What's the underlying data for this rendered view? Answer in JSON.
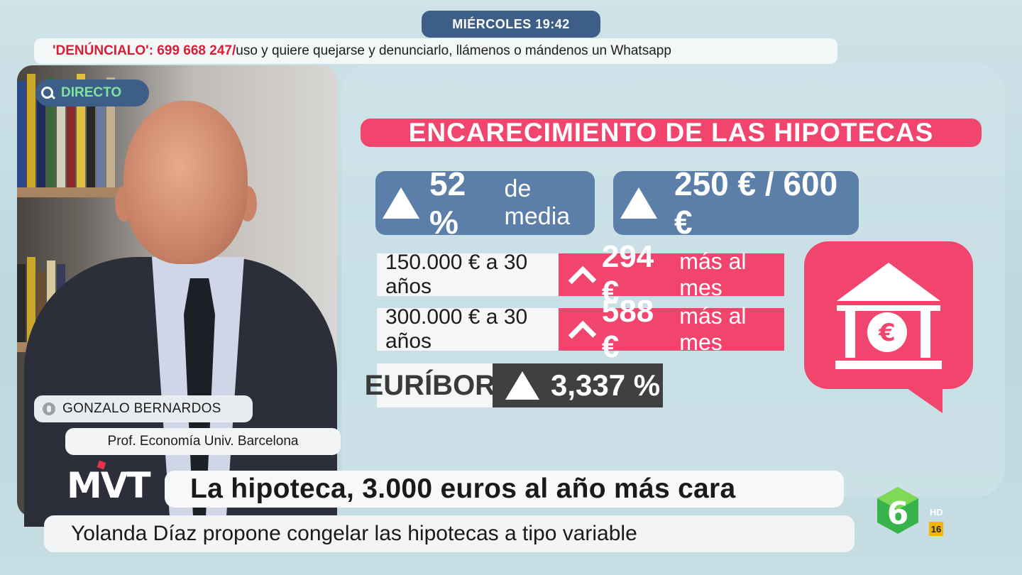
{
  "top_bar": {
    "datetime": "MIÉRCOLES 19:42"
  },
  "ticker": {
    "highlight": "'DENÚNCIALO': 699 668 247/",
    "text": "uso y quiere quejarse y denunciarlo, llámenos o mándenos un Whatsapp"
  },
  "video": {
    "live_label": "DIRECTO",
    "guest_name": "GONZALO BERNARDOS",
    "guest_role": "Prof. Economía Univ. Barcelona"
  },
  "graphic": {
    "title": "ENCARECIMIENTO DE LAS HIPOTECAS",
    "stat_media": {
      "value": "52 %",
      "suffix": "de media"
    },
    "stat_range": {
      "value": "250 € / 600 €"
    },
    "rows": [
      {
        "loan": "150.000 € a 30 años",
        "increase": "294 €",
        "period": "más al mes"
      },
      {
        "loan": "300.000 € a 30 años",
        "increase": "588 €",
        "period": "más al mes"
      }
    ],
    "euribor": {
      "label": "EURÍBOR:",
      "value": "3,337 %"
    },
    "icons": {
      "bank": "bank-euro-icon",
      "up": "triangle-up-icon",
      "chevron": "chevron-up-icon"
    },
    "colors": {
      "accent_pink": "#f2456e",
      "blue": "#5b7fa8",
      "dark": "#404040"
    }
  },
  "lower_third": {
    "show_logo": "MVT",
    "headline": "La hipoteca, 3.000 euros al año más cara",
    "subheadline": "Yolanda Díaz propone congelar las hipotecas a tipo variable"
  },
  "channel": {
    "number": "6",
    "quality": "HD",
    "rating": "16"
  }
}
